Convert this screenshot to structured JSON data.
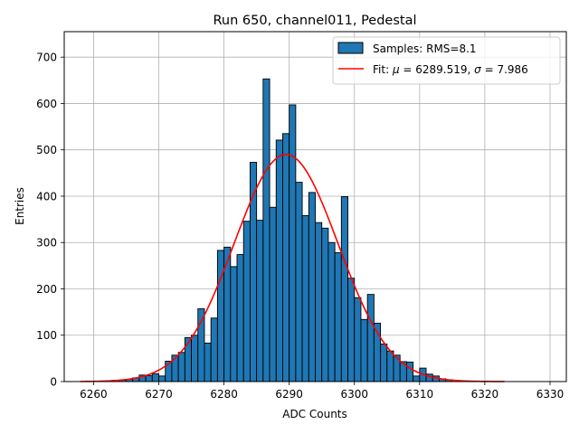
{
  "chart_data": {
    "type": "bar",
    "title": "Run 650, channel011, Pedestal",
    "xlabel": "ADC Counts",
    "ylabel": "Entries",
    "xlim": [
      6255.5,
      6332.5
    ],
    "ylim": [
      0,
      755
    ],
    "xticks": [
      6260,
      6270,
      6280,
      6290,
      6300,
      6310,
      6320,
      6330
    ],
    "yticks": [
      0,
      100,
      200,
      300,
      400,
      500,
      600,
      700
    ],
    "grid": true,
    "legend_position": "top-right",
    "bin_width": 1,
    "bin_starts": [
      6263,
      6264,
      6265,
      6266,
      6267,
      6268,
      6269,
      6270,
      6271,
      6272,
      6273,
      6274,
      6275,
      6276,
      6277,
      6278,
      6279,
      6280,
      6281,
      6282,
      6283,
      6284,
      6285,
      6286,
      6287,
      6288,
      6289,
      6290,
      6291,
      6292,
      6293,
      6294,
      6295,
      6296,
      6297,
      6298,
      6299,
      6300,
      6301,
      6302,
      6303,
      6304,
      6305,
      6306,
      6307,
      6308,
      6309,
      6310,
      6311,
      6312,
      6313,
      6314
    ],
    "values": [
      3,
      3,
      5,
      8,
      14,
      13,
      17,
      12,
      44,
      57,
      63,
      95,
      100,
      157,
      83,
      137,
      283,
      290,
      248,
      274,
      346,
      473,
      348,
      653,
      376,
      521,
      535,
      597,
      430,
      358,
      408,
      343,
      331,
      300,
      278,
      399,
      223,
      181,
      134,
      188,
      126,
      81,
      66,
      57,
      43,
      42,
      12,
      29,
      16,
      12,
      6,
      4
    ],
    "series": [
      {
        "name": "Samples: RMS=8.1",
        "kind": "histogram",
        "color": "#1f77b4",
        "edge_color": "#000000"
      },
      {
        "name": "Fit: μ = 6289.519, σ = 7.986",
        "kind": "gaussian",
        "color": "#ff0000",
        "mu": 6289.519,
        "sigma": 7.986,
        "amplitude": 490,
        "x_range": [
          6258,
          6323
        ]
      }
    ],
    "legend": {
      "histogram_prefix": "Samples: RMS=8.1",
      "fit_text_a": "Fit: ",
      "fit_mu_symbol": "μ",
      "fit_text_b": " = 6289.519, ",
      "fit_sigma_symbol": "σ",
      "fit_text_c": " = 7.986"
    }
  }
}
